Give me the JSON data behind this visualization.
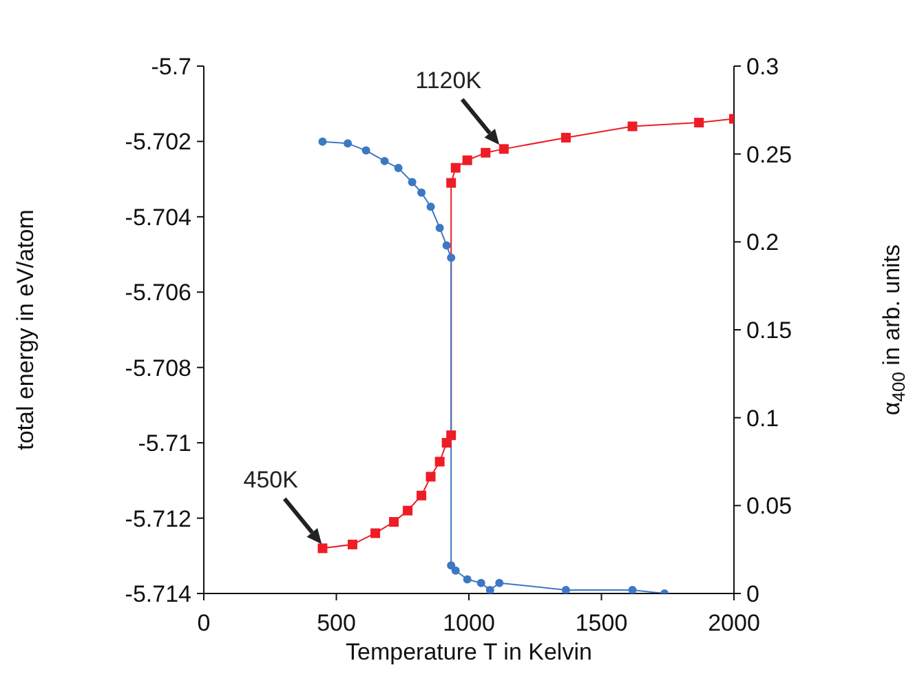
{
  "chart_data": {
    "type": "line",
    "xlabel": "Temperature T in Kelvin",
    "ylabel": "total energy in eV/atom",
    "y2label": "α$_{400}$ in arb. units",
    "xlim": [
      0,
      2000
    ],
    "xticks": [
      0,
      500,
      1000,
      1500,
      2000
    ],
    "ylim": [
      -5.714,
      -5.7
    ],
    "yticks": [
      -5.714,
      -5.712,
      -5.71,
      -5.708,
      -5.706,
      -5.704,
      -5.702,
      -5.7
    ],
    "y2lim": [
      0,
      0.3
    ],
    "y2ticks": [
      0,
      0.05,
      0.1,
      0.15,
      0.2,
      0.25,
      0.3
    ],
    "grid": false,
    "legend": false,
    "line_style": "solid",
    "series": [
      {
        "color": "#ee1c25",
        "marker": "square",
        "x": [
          448,
          561,
          647,
          717,
          769,
          821,
          856,
          890,
          916,
          933,
          933,
          950,
          994,
          1063,
          1132,
          1366,
          1617,
          1868,
          2000
        ],
        "values": [
          -5.7128,
          -5.7127,
          -5.7124,
          -5.7121,
          -5.7118,
          -5.7114,
          -5.7109,
          -5.7105,
          -5.71,
          -5.7098,
          -5.7031,
          -5.7027,
          -5.7025,
          -5.7023,
          -5.7022,
          -5.7019,
          -5.7016,
          -5.7015,
          -5.7014
        ]
      },
      {
        "color": "#3c78c3",
        "marker": "circle",
        "axis": "y2",
        "x": [
          448,
          543,
          612,
          682,
          734,
          786,
          821,
          856,
          890,
          916,
          933,
          933,
          950,
          994,
          1046,
          1080,
          1115,
          1366,
          1617,
          1738
        ],
        "values": [
          0.257,
          0.256,
          0.252,
          0.246,
          0.242,
          0.234,
          0.228,
          0.22,
          0.208,
          0.198,
          0.191,
          0.016,
          0.013,
          0.008,
          0.006,
          0.002,
          0.006,
          0.002,
          0.002,
          0
        ]
      }
    ],
    "annotations": [
      {
        "text": "450K",
        "x": 450,
        "y": -5.7128
      },
      {
        "text": "1120K",
        "x": 1120,
        "y": -5.7022
      }
    ]
  }
}
